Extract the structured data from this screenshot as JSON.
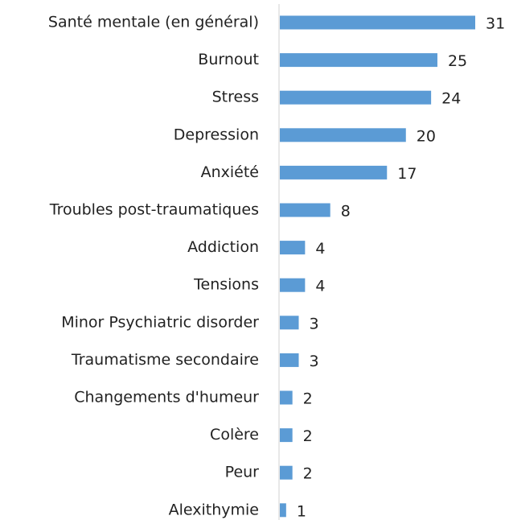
{
  "chart_data": {
    "type": "bar",
    "orientation": "horizontal",
    "categories": [
      "Santé mentale (en général)",
      "Burnout",
      "Stress",
      "Depression",
      "Anxiété",
      "Troubles post-traumatiques",
      "Addiction",
      "Tensions",
      "Minor Psychiatric disorder",
      "Traumatisme secondaire",
      "Changements d'humeur",
      "Colère",
      "Peur",
      "Alexithymie"
    ],
    "values": [
      31,
      25,
      24,
      20,
      17,
      8,
      4,
      4,
      3,
      3,
      2,
      2,
      2,
      1
    ],
    "color": "#5b9bd5"
  }
}
